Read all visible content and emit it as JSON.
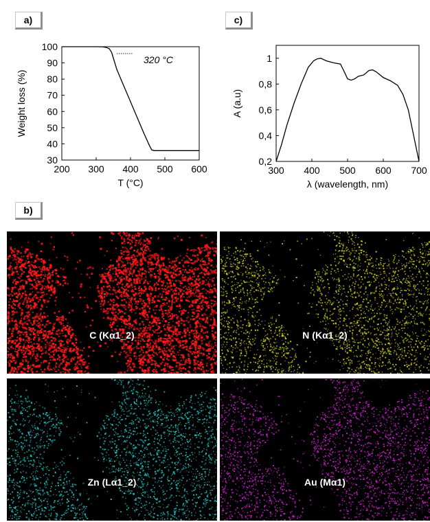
{
  "panels": {
    "a": "a)",
    "b": "b)",
    "c": "c)"
  },
  "chart_data": [
    {
      "type": "line",
      "panel": "a)",
      "xlabel": "T (°C)",
      "ylabel": "Weight loss (%)",
      "xlim": [
        200,
        600
      ],
      "ylim": [
        30,
        100
      ],
      "xticks": [
        200,
        300,
        400,
        500,
        600
      ],
      "yticks": [
        30,
        40,
        50,
        60,
        70,
        80,
        90,
        100
      ],
      "annotation": "320 °C",
      "series": [
        {
          "x": [
            200,
            250,
            300,
            320,
            330,
            338,
            345,
            350,
            360,
            380,
            400,
            420,
            440,
            455,
            462,
            470,
            500,
            550,
            600
          ],
          "y": [
            100,
            100,
            100,
            99.9,
            99.5,
            98.8,
            96.5,
            93,
            86,
            76,
            66,
            56,
            46,
            39,
            36.2,
            35.8,
            35.8,
            35.8,
            35.8
          ]
        }
      ],
      "grid": false,
      "color": "#000000"
    },
    {
      "type": "line",
      "panel": "c)",
      "xlabel": "λ (wavelength, nm)",
      "ylabel": "A (a.u)",
      "xlim": [
        300,
        700
      ],
      "ylim": [
        0.2,
        1.1
      ],
      "xticks": [
        300,
        400,
        500,
        600,
        700
      ],
      "yticks": [
        "0,2",
        "0,4",
        "0,6",
        "0,8",
        "1"
      ],
      "ytick_values": [
        0.2,
        0.4,
        0.6,
        0.8,
        1.0
      ],
      "series": [
        {
          "x": [
            300,
            315,
            330,
            350,
            370,
            390,
            405,
            415,
            425,
            440,
            460,
            480,
            490,
            500,
            510,
            520,
            530,
            545,
            560,
            570,
            580,
            600,
            620,
            640,
            655,
            670,
            685,
            700
          ],
          "y": [
            0.2,
            0.33,
            0.48,
            0.65,
            0.8,
            0.93,
            0.98,
            0.995,
            1.0,
            0.98,
            0.965,
            0.955,
            0.9,
            0.84,
            0.83,
            0.84,
            0.86,
            0.87,
            0.905,
            0.91,
            0.895,
            0.85,
            0.825,
            0.79,
            0.72,
            0.6,
            0.4,
            0.2
          ]
        }
      ],
      "grid": false,
      "color": "#000000"
    }
  ],
  "maps": [
    {
      "label": "C (Kα1_2)",
      "color": "#ff1a1a"
    },
    {
      "label": "N (Kα1_2)",
      "color": "#cccc22"
    },
    {
      "label": "Zn (Lα1_2)",
      "color": "#22c4c4"
    },
    {
      "label": "Au (Mα1)",
      "color": "#cc22cc"
    }
  ]
}
